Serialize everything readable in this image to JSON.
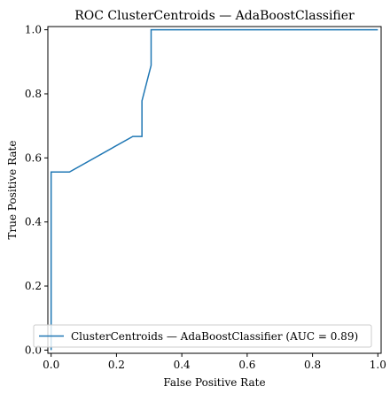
{
  "chart_data": {
    "type": "line",
    "title": "ROC ClusterCentroids — AdaBoostClassifier",
    "xlabel": "False Positive Rate",
    "ylabel": "True Positive Rate",
    "xlim": [
      -0.01,
      1.01
    ],
    "ylim": [
      -0.01,
      1.01
    ],
    "grid": false,
    "legend_placement": "lower-right",
    "xticks": [
      "0.0",
      "0.2",
      "0.4",
      "0.6",
      "0.8",
      "1.0"
    ],
    "yticks": [
      "0.0",
      "0.2",
      "0.4",
      "0.6",
      "0.8",
      "1.0"
    ],
    "series": [
      {
        "name": "ClusterCentroids — AdaBoostClassifier (AUC = 0.89)",
        "color": "#1f77b4",
        "x": [
          0.0,
          0.0,
          0.0,
          0.0,
          0.056,
          0.25,
          0.278,
          0.278,
          0.278,
          0.306,
          0.306,
          1.0
        ],
        "y": [
          0.0,
          0.056,
          0.5,
          0.556,
          0.556,
          0.667,
          0.667,
          0.722,
          0.778,
          0.889,
          1.0,
          1.0
        ]
      }
    ]
  }
}
